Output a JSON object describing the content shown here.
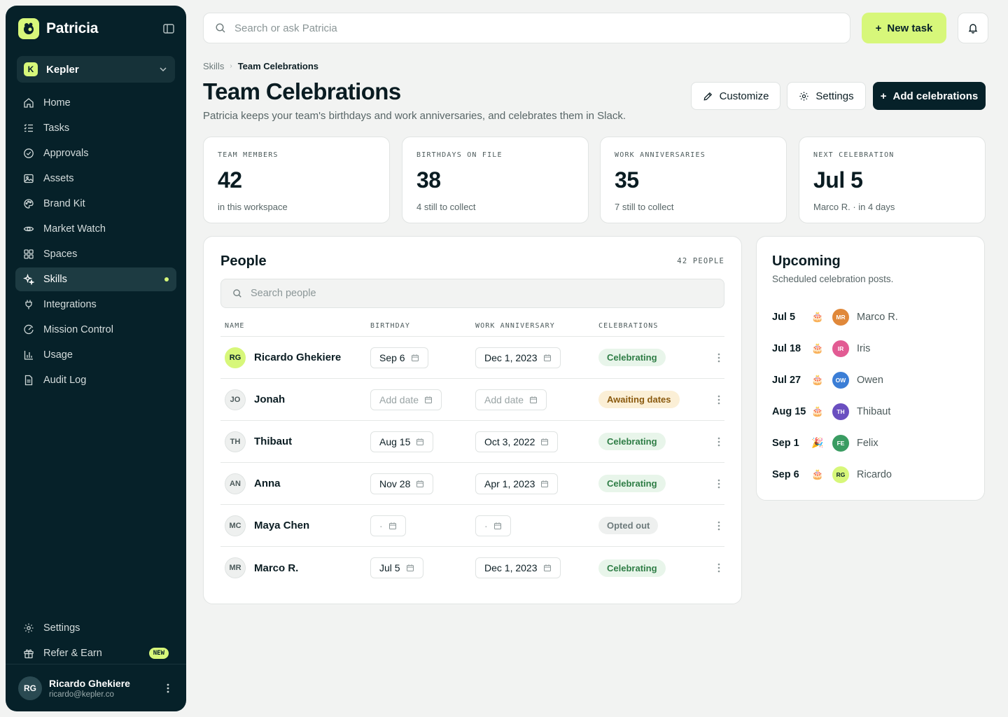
{
  "app": {
    "name": "Patricia"
  },
  "workspace": {
    "badge": "K",
    "name": "Kepler"
  },
  "nav": [
    {
      "key": "home",
      "label": "Home",
      "icon": "home-icon"
    },
    {
      "key": "tasks",
      "label": "Tasks",
      "icon": "tasks-icon"
    },
    {
      "key": "approvals",
      "label": "Approvals",
      "icon": "check-circle-icon"
    },
    {
      "key": "assets",
      "label": "Assets",
      "icon": "image-icon"
    },
    {
      "key": "brand-kit",
      "label": "Brand Kit",
      "icon": "palette-icon"
    },
    {
      "key": "market-watch",
      "label": "Market Watch",
      "icon": "eye-icon"
    },
    {
      "key": "spaces",
      "label": "Spaces",
      "icon": "grid-icon"
    },
    {
      "key": "skills",
      "label": "Skills",
      "icon": "sparkle-icon",
      "active": true
    },
    {
      "key": "integrations",
      "label": "Integrations",
      "icon": "plug-icon"
    },
    {
      "key": "mission-control",
      "label": "Mission Control",
      "icon": "gauge-icon"
    },
    {
      "key": "usage",
      "label": "Usage",
      "icon": "bar-chart-icon"
    },
    {
      "key": "audit-log",
      "label": "Audit Log",
      "icon": "file-icon"
    }
  ],
  "nav_bottom": {
    "settings": "Settings",
    "refer": "Refer & Earn",
    "refer_badge": "NEW"
  },
  "user": {
    "initials": "RG",
    "name": "Ricardo Ghekiere",
    "email": "ricardo@kepler.co"
  },
  "topbar": {
    "search_placeholder": "Search or ask Patricia",
    "new_task": "New task"
  },
  "breadcrumb": {
    "parent": "Skills",
    "current": "Team Celebrations"
  },
  "page": {
    "title": "Team Celebrations",
    "subtitle": "Patricia keeps your team's birthdays and work anniversaries, and celebrates them in Slack.",
    "customize": "Customize",
    "settings": "Settings",
    "add": "Add celebrations"
  },
  "stats": [
    {
      "label": "TEAM MEMBERS",
      "value": "42",
      "note": "in this workspace"
    },
    {
      "label": "BIRTHDAYS ON FILE",
      "value": "38",
      "note": "4 still to collect"
    },
    {
      "label": "WORK ANNIVERSARIES",
      "value": "35",
      "note": "7 still to collect"
    },
    {
      "label": "NEXT CELEBRATION",
      "value": "Jul 5",
      "note": "Marco R. · in 4 days"
    }
  ],
  "people": {
    "title": "People",
    "count": "42 PEOPLE",
    "search_placeholder": "Search people",
    "columns": {
      "name": "NAME",
      "birthday": "BIRTHDAY",
      "anniversary": "WORK ANNIVERSARY",
      "celebrations": "CELEBRATIONS"
    },
    "rows": [
      {
        "initials": "RG",
        "name": "Ricardo Ghekiere",
        "birthday": "Sep 6",
        "anniversary": "Dec 1, 2023",
        "status": "Celebrating",
        "tone": "green",
        "highlight": true
      },
      {
        "initials": "JO",
        "name": "Jonah",
        "birthday": "Add date",
        "anniversary": "Add date",
        "status": "Awaiting dates",
        "tone": "amber",
        "birthday_empty": true,
        "anniversary_empty": true
      },
      {
        "initials": "TH",
        "name": "Thibaut",
        "birthday": "Aug 15",
        "anniversary": "Oct 3, 2022",
        "status": "Celebrating",
        "tone": "green"
      },
      {
        "initials": "AN",
        "name": "Anna",
        "birthday": "Nov 28",
        "anniversary": "Apr 1, 2023",
        "status": "Celebrating",
        "tone": "green"
      },
      {
        "initials": "MC",
        "name": "Maya Chen",
        "birthday": "·",
        "anniversary": "·",
        "status": "Opted out",
        "tone": "gray",
        "birthday_empty": true,
        "anniversary_empty": true
      },
      {
        "initials": "MR",
        "name": "Marco R.",
        "birthday": "Jul 5",
        "anniversary": "Dec 1, 2023",
        "status": "Celebrating",
        "tone": "green"
      }
    ]
  },
  "upcoming": {
    "title": "Upcoming",
    "subtitle": "Scheduled celebration posts.",
    "items": [
      {
        "date": "Jul 5",
        "emoji": "🎂",
        "initials": "MR",
        "name": "Marco R.",
        "color": "#e0883a"
      },
      {
        "date": "Jul 18",
        "emoji": "🎂",
        "initials": "IR",
        "name": "Iris",
        "color": "#e25b93"
      },
      {
        "date": "Jul 27",
        "emoji": "🎂",
        "initials": "OW",
        "name": "Owen",
        "color": "#3b7ed6"
      },
      {
        "date": "Aug 15",
        "emoji": "🎂",
        "initials": "TH",
        "name": "Thibaut",
        "color": "#6a4fc0"
      },
      {
        "date": "Sep 1",
        "emoji": "🎉",
        "initials": "FE",
        "name": "Felix",
        "color": "#3a9c62"
      },
      {
        "date": "Sep 6",
        "emoji": "🎂",
        "initials": "RG",
        "name": "Ricardo",
        "color": "#d7f77a"
      }
    ]
  }
}
